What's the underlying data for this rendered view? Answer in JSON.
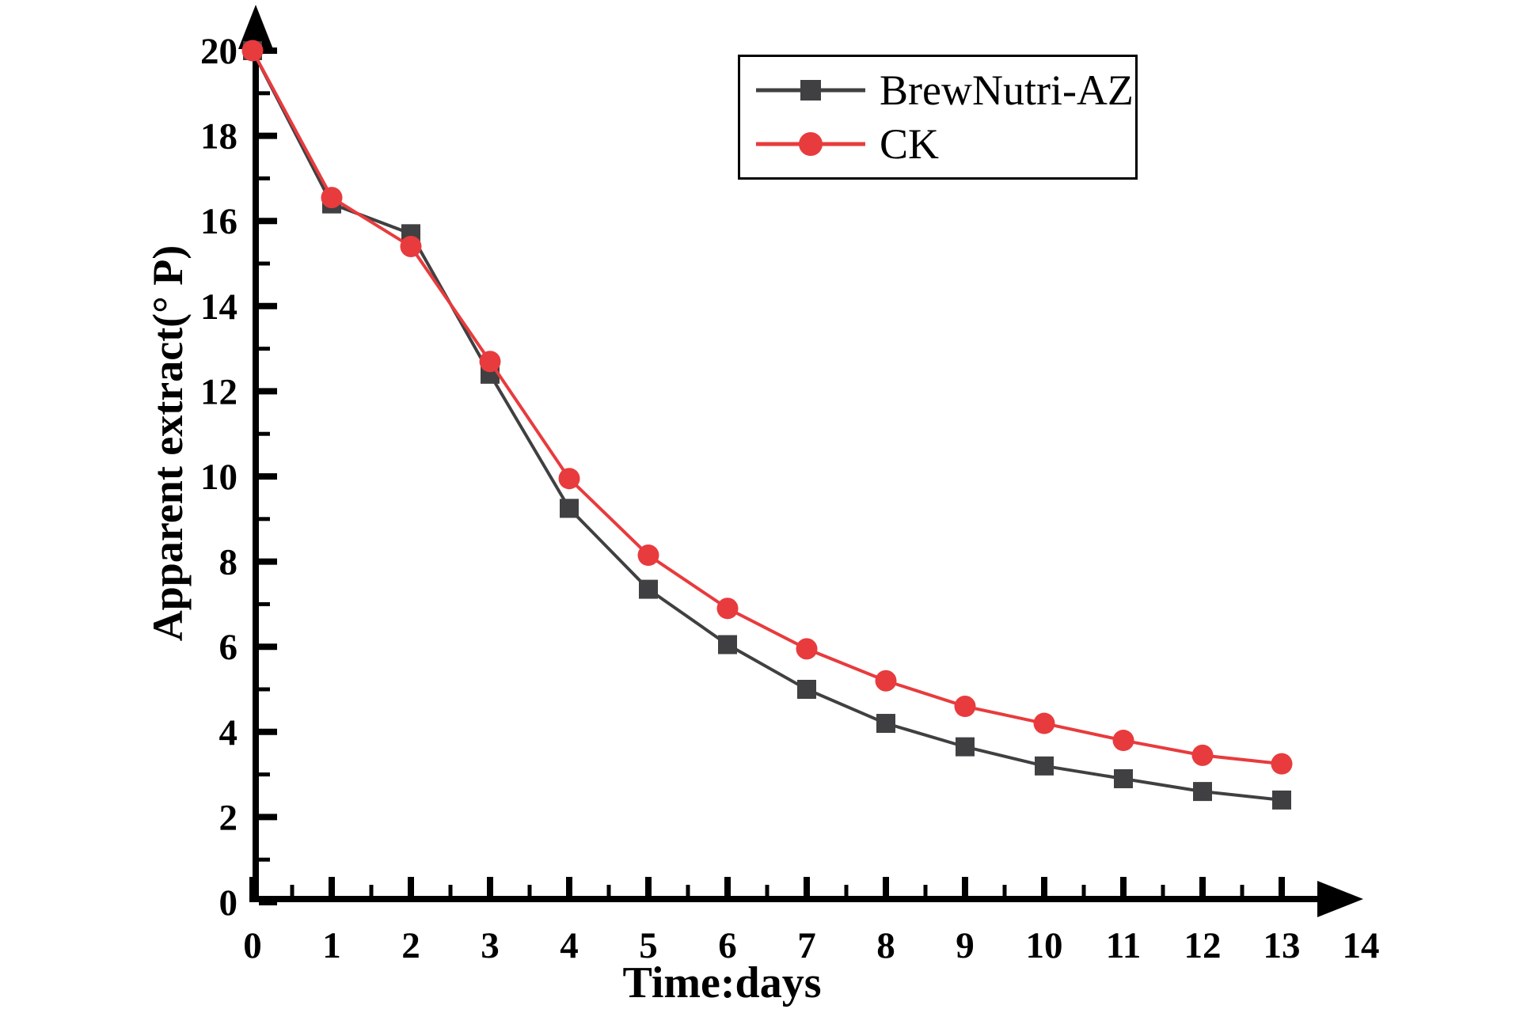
{
  "chart_data": {
    "type": "line",
    "title": "",
    "xlabel": "Time:days",
    "ylabel": "Apparent extract(° P)",
    "x": [
      0,
      1,
      2,
      3,
      4,
      5,
      6,
      7,
      8,
      9,
      10,
      11,
      12,
      13
    ],
    "series": [
      {
        "name": "BrewNutri-AZ",
        "color": "#404042",
        "marker": "square",
        "values": [
          20.0,
          16.4,
          15.7,
          12.4,
          9.25,
          7.35,
          6.05,
          5.0,
          4.2,
          3.65,
          3.2,
          2.9,
          2.6,
          2.4
        ]
      },
      {
        "name": "CK",
        "color": "#e83b3d",
        "marker": "circle",
        "values": [
          20.0,
          16.55,
          15.4,
          12.7,
          9.95,
          8.15,
          6.9,
          5.95,
          5.2,
          4.6,
          4.2,
          3.8,
          3.45,
          3.25
        ]
      }
    ],
    "xlim": [
      0,
      14
    ],
    "ylim": [
      0,
      20
    ],
    "x_tick_step": 1,
    "x_minor_step": 0.5,
    "y_tick_step": 2,
    "y_minor_step": 1,
    "x_tick_labels": [
      "0",
      "1",
      "2",
      "3",
      "4",
      "5",
      "6",
      "7",
      "8",
      "9",
      "10",
      "11",
      "12",
      "13",
      "14"
    ],
    "y_tick_labels": [
      "0",
      "2",
      "4",
      "6",
      "8",
      "10",
      "12",
      "14",
      "16",
      "18",
      "20"
    ],
    "grid": false,
    "legend_position": "top-right",
    "axis_color": "#000000",
    "axis_arrows": true
  }
}
